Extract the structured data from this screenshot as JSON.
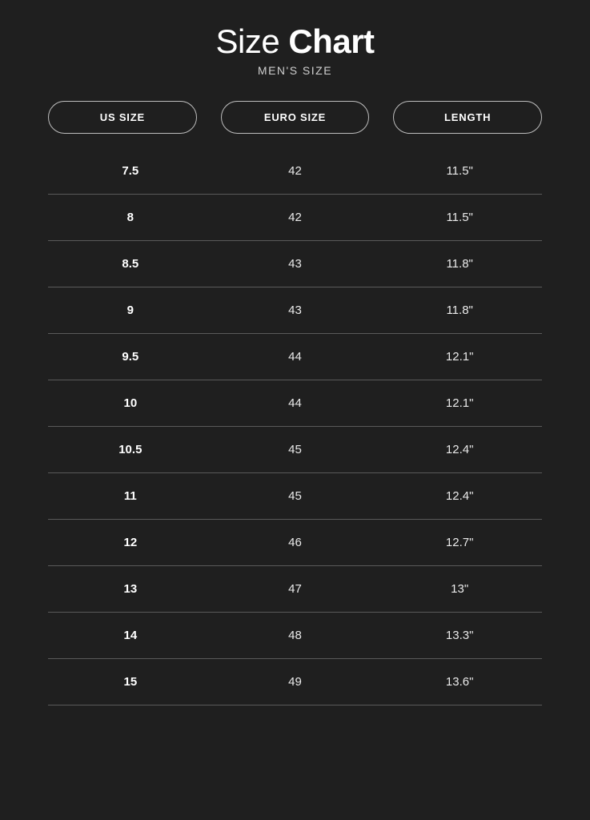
{
  "title": {
    "light": "Size ",
    "bold": "Chart"
  },
  "subtitle": "MEN'S SIZE",
  "columns": [
    "US SIZE",
    "EURO SIZE",
    "LENGTH"
  ],
  "rows": [
    {
      "us": "7.5",
      "euro": "42",
      "length": "11.5\""
    },
    {
      "us": "8",
      "euro": "42",
      "length": "11.5\""
    },
    {
      "us": "8.5",
      "euro": "43",
      "length": "11.8\""
    },
    {
      "us": "9",
      "euro": "43",
      "length": "11.8\""
    },
    {
      "us": "9.5",
      "euro": "44",
      "length": "12.1\""
    },
    {
      "us": "10",
      "euro": "44",
      "length": "12.1\""
    },
    {
      "us": "10.5",
      "euro": "45",
      "length": "12.4\""
    },
    {
      "us": "11",
      "euro": "45",
      "length": "12.4\""
    },
    {
      "us": "12",
      "euro": "46",
      "length": "12.7\""
    },
    {
      "us": "13",
      "euro": "47",
      "length": "13\""
    },
    {
      "us": "14",
      "euro": "48",
      "length": "13.3\""
    },
    {
      "us": "15",
      "euro": "49",
      "length": "13.6\""
    }
  ],
  "colors": {
    "background": "#1f1f1f",
    "text": "#e9e9e9",
    "title": "#ffffff",
    "subtitle": "#cfcfcf",
    "pill_border": "#bdbdbd",
    "row_border": "#5a5a5a"
  },
  "typography": {
    "title_fontsize": 42,
    "subtitle_fontsize": 14,
    "pill_fontsize": 13,
    "cell_fontsize": 15
  }
}
